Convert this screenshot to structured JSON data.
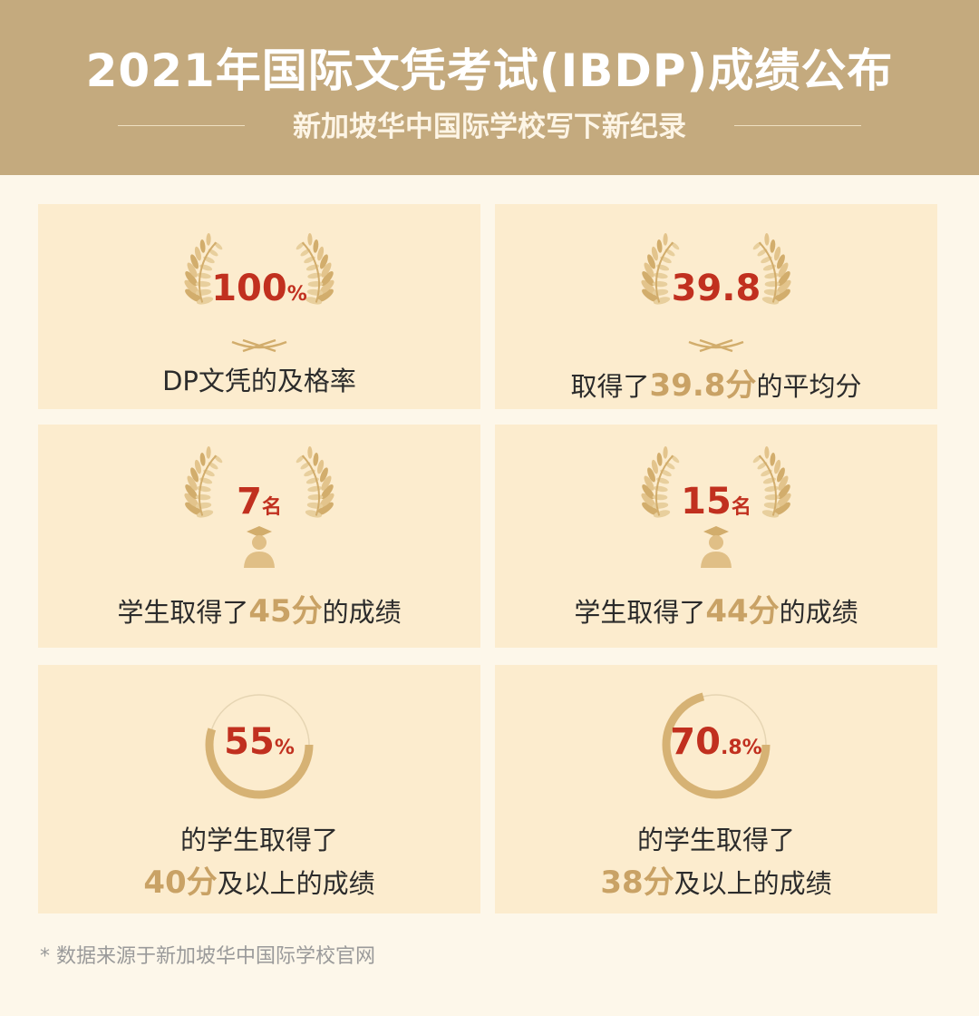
{
  "header": {
    "title": "2021年国际文凭考试(IBDP)成绩公布",
    "subtitle": "新加坡华中国际学校写下新纪录"
  },
  "stats": [
    {
      "value": "100",
      "unit": "%",
      "caption": "DP文凭的及格率",
      "icon": "laurel-wreath-icon"
    },
    {
      "value": "39.8",
      "unit": "",
      "caption_pre": "取得了",
      "caption_hl": "39.8分",
      "caption_post": "的平均分",
      "icon": "laurel-wreath-icon"
    },
    {
      "value": "7",
      "unit": "名",
      "caption_pre": "学生取得了",
      "caption_hl": "45分",
      "caption_post": "的成绩",
      "icon": "graduate-icon"
    },
    {
      "value": "15",
      "unit": "名",
      "caption_pre": "学生取得了",
      "caption_hl": "44分",
      "caption_post": "的成绩",
      "icon": "graduate-icon"
    },
    {
      "value": "55",
      "unit": "%",
      "progress": 0.55,
      "caption_line1": "的学生取得了",
      "caption_hl": "40分",
      "caption_post": "及以上的成绩",
      "icon": "progress-ring-icon"
    },
    {
      "value": "70.8",
      "unit": ".8%",
      "value_main": "70",
      "progress": 0.708,
      "caption_line1": "的学生取得了",
      "caption_hl": "38分",
      "caption_post": "及以上的成绩",
      "icon": "progress-ring-icon"
    }
  ],
  "footnote": "* 数据来源于新加坡华中国际学校官网",
  "colors": {
    "header_bg": "#c4aa7e",
    "card_bg": "#fcecce",
    "accent_red": "#c1301f",
    "accent_gold": "#c9a265"
  }
}
